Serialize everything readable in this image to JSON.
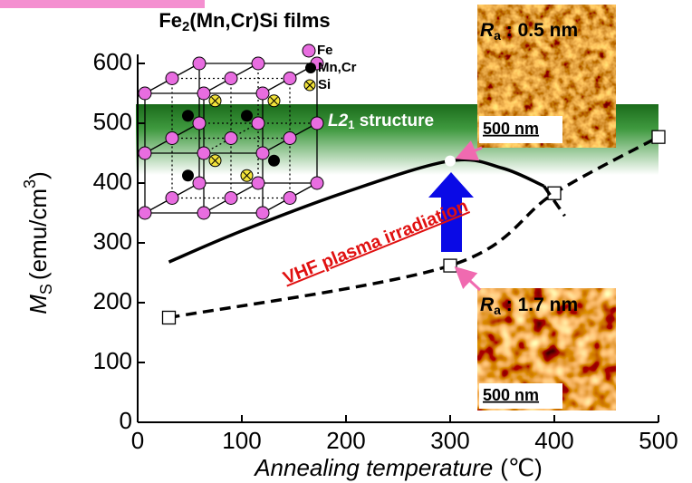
{
  "chart_data": {
    "type": "line",
    "title": [
      "Fe",
      "2",
      "(Mn,Cr)Si films"
    ],
    "xlabel": [
      "Annealing temperature",
      "(℃)"
    ],
    "ylabel": [
      "M",
      "S",
      "(emu/cm",
      "3",
      ")"
    ],
    "legend_atoms": [
      "Fe",
      "Mn,Cr",
      "Si"
    ],
    "structure": [
      "L2",
      "1",
      " structure"
    ],
    "annotation": "VHF plasma irradiation",
    "images": [
      {
        "label": [
          "R",
          "a",
          " : 0.5 nm"
        ],
        "scale": "500 nm"
      },
      {
        "label": [
          "R",
          "a",
          " : 1.7 nm"
        ],
        "scale": "500 nm"
      }
    ],
    "xlim": [
      0,
      500
    ],
    "ylim": [
      0,
      600
    ],
    "xticks": [
      0,
      100,
      200,
      300,
      400,
      500
    ],
    "yticks": [
      0,
      100,
      200,
      300,
      400,
      500,
      600
    ],
    "series": [
      {
        "x": [
          30,
          300,
          400,
          500
        ],
        "values": [
          175,
          262,
          383,
          477
        ],
        "color": "#000000",
        "dash": true,
        "marker": "square"
      },
      {
        "x": [
          30,
          100,
          200,
          300,
          350,
          390
        ],
        "values": [
          268,
          320,
          385,
          437,
          425,
          395
        ],
        "color": "#000000",
        "dash": false
      },
      {
        "x": [
          390,
          410
        ],
        "values": [
          395,
          345
        ],
        "color": "#000000",
        "dash": true
      },
      {
        "x": [
          300
        ],
        "values": [
          437
        ],
        "color": "#ffffff",
        "marker": "circle",
        "line": false
      }
    ]
  }
}
